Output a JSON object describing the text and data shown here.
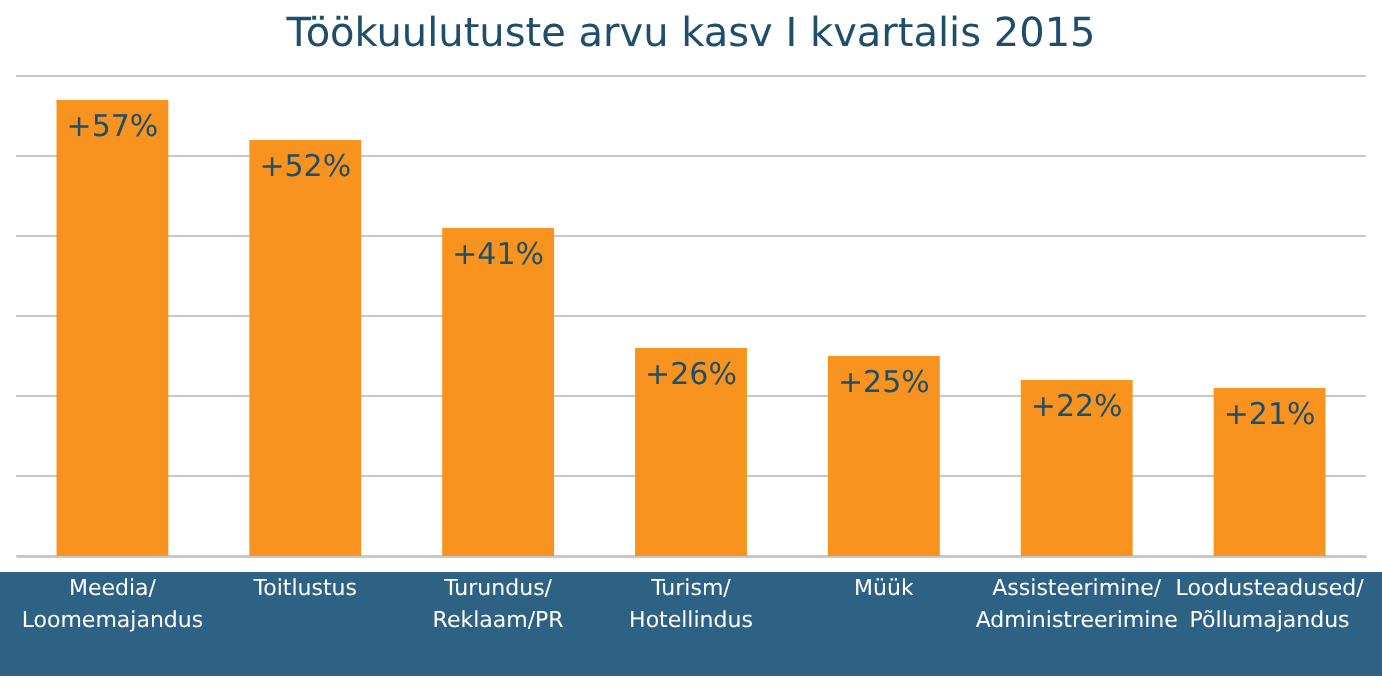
{
  "chart_data": {
    "type": "bar",
    "title": "Töökuulutuste arvu kasv I kvartalis 2015",
    "categories": [
      "Meedia/Loomemajandus",
      "Toitlustus",
      "Turundus/Reklaam/PR",
      "Turism/Hotellindus",
      "Müük",
      "Assisteerimine/Administreerimine",
      "Loodusteadused/Põllumajandus"
    ],
    "values": [
      57,
      52,
      41,
      26,
      25,
      22,
      21
    ],
    "value_labels": [
      "+57%",
      "+52%",
      "+41%",
      "+26%",
      "+25%",
      "+22%",
      "+21%"
    ],
    "color": "#f7931e",
    "ylim": [
      0,
      60
    ],
    "yticks": [
      {
        "value": 0,
        "label": null
      },
      {
        "value": 10,
        "label": null
      },
      {
        "value": 20,
        "label": null
      },
      {
        "value": 30,
        "label": null
      },
      {
        "value": 40,
        "label": null
      },
      {
        "value": 50,
        "label": null
      },
      {
        "value": 60,
        "label": null
      }
    ],
    "grid": "y"
  }
}
